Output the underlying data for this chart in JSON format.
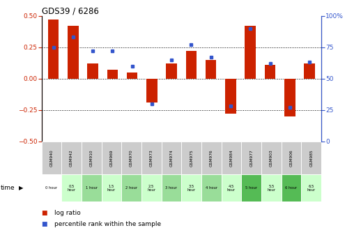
{
  "title": "GDS39 / 6286",
  "samples": [
    "GSM940",
    "GSM942",
    "GSM910",
    "GSM969",
    "GSM970",
    "GSM973",
    "GSM974",
    "GSM975",
    "GSM976",
    "GSM984",
    "GSM977",
    "GSM903",
    "GSM906",
    "GSM985"
  ],
  "time_labels": [
    "0 hour",
    "0.5\nhour",
    "1 hour",
    "1.5\nhour",
    "2 hour",
    "2.5\nhour",
    "3 hour",
    "3.5\nhour",
    "4 hour",
    "4.5\nhour",
    "5 hour",
    "5.5\nhour",
    "6 hour",
    "6.5\nhour"
  ],
  "log_ratio": [
    0.47,
    0.42,
    0.12,
    0.07,
    0.05,
    -0.19,
    0.12,
    0.22,
    0.15,
    -0.28,
    0.42,
    0.11,
    -0.3,
    0.12
  ],
  "percentile": [
    75,
    83,
    72,
    72,
    60,
    30,
    65,
    77,
    67,
    28,
    90,
    62,
    27,
    63
  ],
  "bar_color": "#cc2200",
  "dot_color": "#3355cc",
  "bg_color": "#ffffff",
  "ylim": [
    -0.5,
    0.5
  ],
  "y2lim": [
    0,
    100
  ],
  "yticks": [
    -0.5,
    -0.25,
    0,
    0.25,
    0.5
  ],
  "y2ticks": [
    0,
    25,
    50,
    75,
    100
  ],
  "hline_vals": [
    -0.25,
    0,
    0.25
  ],
  "sample_row_color": "#cccccc",
  "time_bg_colors": [
    "#ffffff",
    "#ccffcc",
    "#99dd99",
    "#ccffcc",
    "#99dd99",
    "#ccffcc",
    "#99dd99",
    "#ccffcc",
    "#99dd99",
    "#ccffcc",
    "#55bb55",
    "#ccffcc",
    "#55bb55",
    "#ccffcc"
  ]
}
